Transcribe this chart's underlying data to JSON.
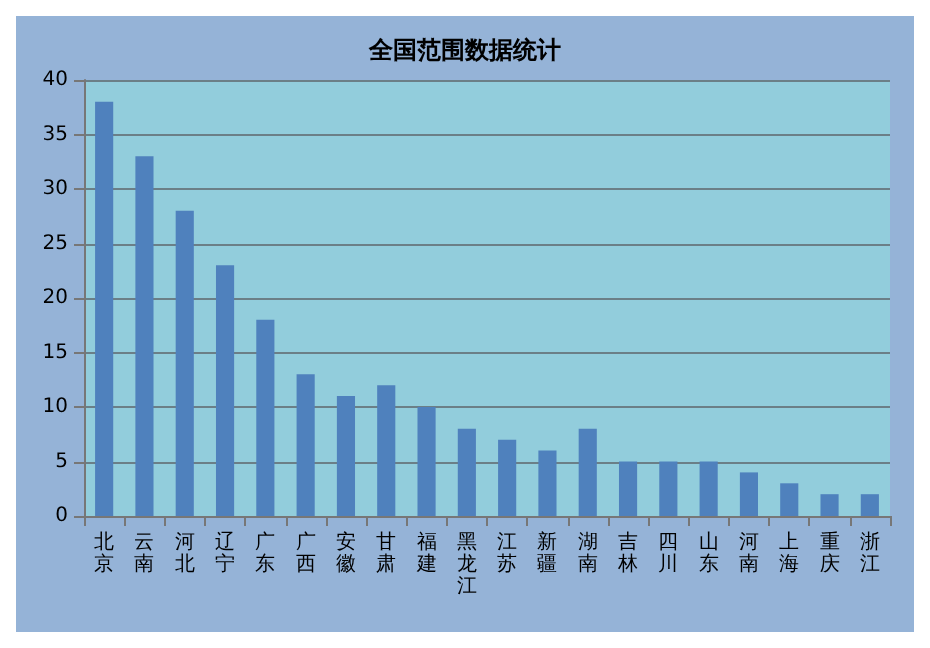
{
  "chart_data": {
    "type": "bar",
    "title": "全国范围数据统计",
    "categories": [
      "北京",
      "云南",
      "河北",
      "辽宁",
      "广东",
      "广西",
      "安徽",
      "甘肃",
      "福建",
      "黑龙江",
      "江苏",
      "新疆",
      "湖南",
      "吉林",
      "四川",
      "山东",
      "河南",
      "上海",
      "重庆",
      "浙江"
    ],
    "values": [
      38,
      33,
      28,
      23,
      18,
      13,
      11,
      12,
      10,
      8,
      7,
      6,
      8,
      5,
      5,
      5,
      4,
      3,
      2,
      2
    ],
    "color": "#4f81bd",
    "ylim": [
      0,
      40
    ],
    "yticks": [
      0,
      5,
      10,
      15,
      20,
      25,
      30,
      35,
      40
    ],
    "grid": "y"
  }
}
